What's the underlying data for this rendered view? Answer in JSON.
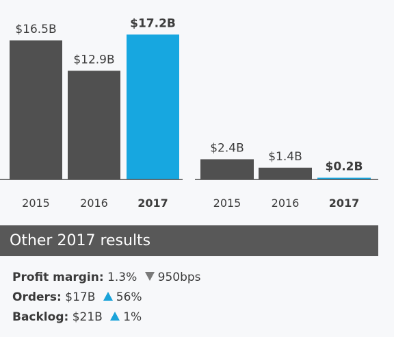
{
  "chart_data": [
    {
      "type": "bar",
      "categories": [
        "2015",
        "2016",
        "2017"
      ],
      "values": [
        16.5,
        12.9,
        17.2
      ],
      "labels": [
        "$16.5B",
        "$12.9B",
        "$17.2B"
      ],
      "colors": [
        "#505050",
        "#505050",
        "#17a7e0"
      ],
      "title": "",
      "xlabel": "",
      "ylabel": ""
    },
    {
      "type": "bar",
      "categories": [
        "2015",
        "2016",
        "2017"
      ],
      "values": [
        2.4,
        1.4,
        0.2
      ],
      "labels": [
        "$2.4B",
        "$1.4B",
        "$0.2B"
      ],
      "colors": [
        "#505050",
        "#505050",
        "#17a7e0"
      ],
      "title": "",
      "xlabel": "",
      "ylabel": ""
    }
  ],
  "other_results": {
    "title": "Other 2017 results",
    "rows": [
      {
        "label": "Profit margin:",
        "value": "1.3%",
        "change_direction": "down",
        "change": "950bps"
      },
      {
        "label": "Orders:",
        "value": "$17B",
        "change_direction": "up",
        "change": "56%"
      },
      {
        "label": "Backlog:",
        "value": "$21B",
        "change_direction": "up",
        "change": "1%"
      }
    ]
  }
}
